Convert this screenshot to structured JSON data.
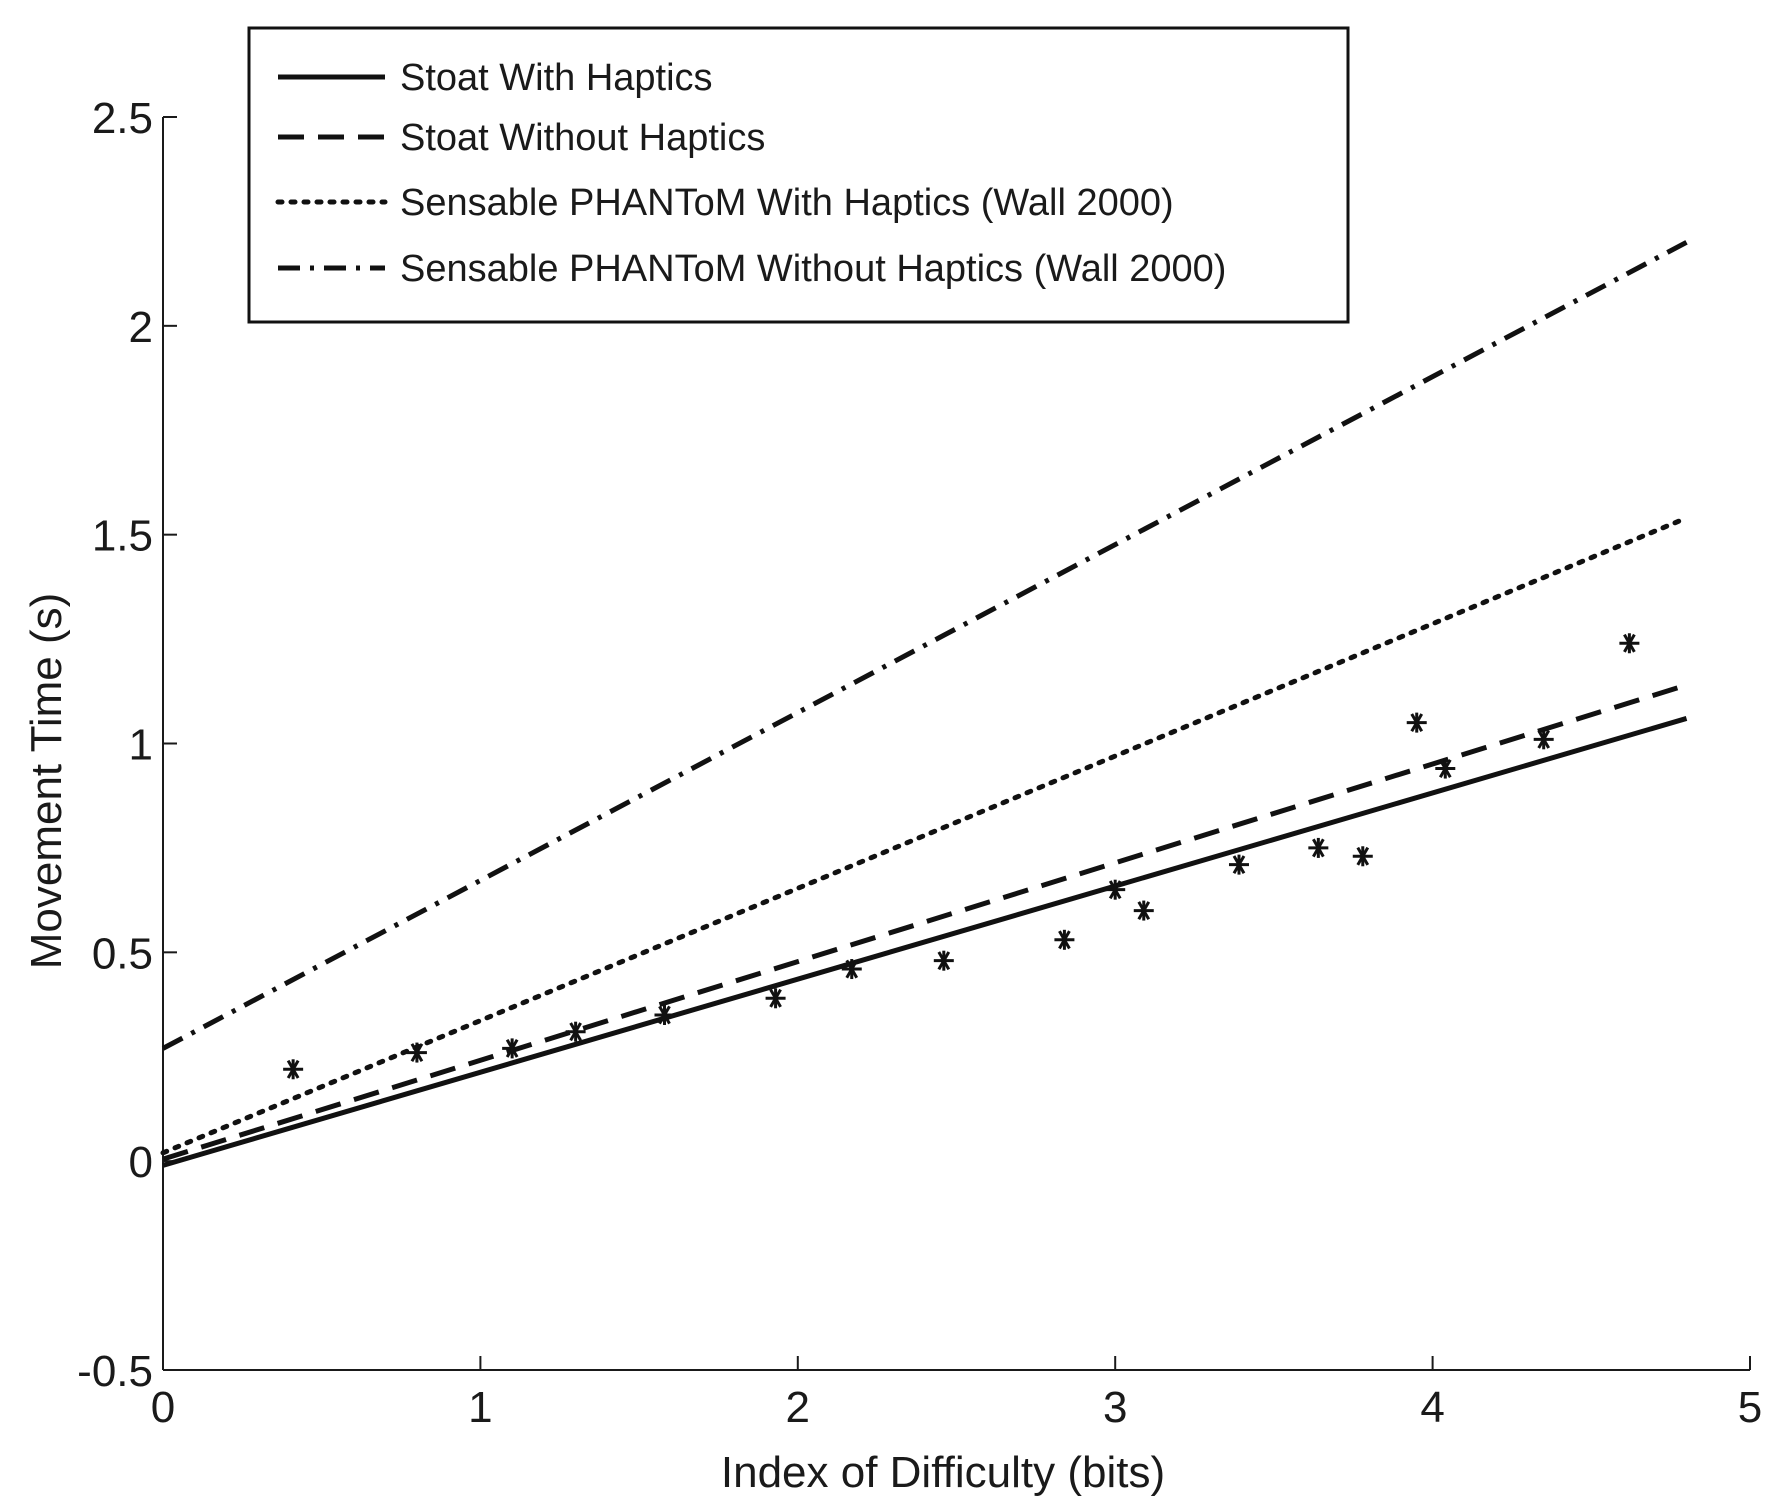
{
  "chart_data": {
    "type": "line",
    "title": "",
    "xlabel": "Index of Difficulty (bits)",
    "ylabel": "Movement Time (s)",
    "xlim": [
      0,
      5
    ],
    "ylim": [
      -0.5,
      2.5
    ],
    "xticks": [
      0,
      1,
      2,
      3,
      4,
      5
    ],
    "xtick_labels": [
      "0",
      "1",
      "2",
      "3",
      "4",
      "5"
    ],
    "yticks": [
      -0.5,
      0,
      0.5,
      1,
      1.5,
      2,
      2.5
    ],
    "ytick_labels": [
      "-0.5",
      "0",
      "0.5",
      "1",
      "1.5",
      "2",
      "2.5"
    ],
    "grid": false,
    "legend_position": "top-left",
    "series": [
      {
        "name": "Stoat With Haptics",
        "style": "solid",
        "x": [
          0,
          4.8
        ],
        "y": [
          -0.01,
          1.06
        ]
      },
      {
        "name": "Stoat Without Haptics",
        "style": "dashed",
        "x": [
          0,
          4.8
        ],
        "y": [
          0.005,
          1.14
        ]
      },
      {
        "name": "Sensable PHANToM With Haptics (Wall 2000)",
        "style": "dotted",
        "x": [
          0,
          4.8
        ],
        "y": [
          0.02,
          1.54
        ]
      },
      {
        "name": "Sensable PHANToM Without Haptics (Wall 2000)",
        "style": "dashdot",
        "x": [
          0,
          4.8
        ],
        "y": [
          0.27,
          2.2
        ]
      }
    ],
    "scatter": {
      "marker": "*",
      "points": [
        {
          "x": 0.41,
          "y": 0.22
        },
        {
          "x": 0.8,
          "y": 0.26
        },
        {
          "x": 1.1,
          "y": 0.27
        },
        {
          "x": 1.3,
          "y": 0.31
        },
        {
          "x": 1.58,
          "y": 0.35
        },
        {
          "x": 1.93,
          "y": 0.39
        },
        {
          "x": 2.17,
          "y": 0.46
        },
        {
          "x": 2.46,
          "y": 0.48
        },
        {
          "x": 2.84,
          "y": 0.53
        },
        {
          "x": 3.0,
          "y": 0.65
        },
        {
          "x": 3.09,
          "y": 0.6
        },
        {
          "x": 3.39,
          "y": 0.71
        },
        {
          "x": 3.64,
          "y": 0.75
        },
        {
          "x": 3.78,
          "y": 0.73
        },
        {
          "x": 3.95,
          "y": 1.05
        },
        {
          "x": 4.04,
          "y": 0.94
        },
        {
          "x": 4.35,
          "y": 1.01
        },
        {
          "x": 4.62,
          "y": 1.24
        }
      ]
    }
  }
}
